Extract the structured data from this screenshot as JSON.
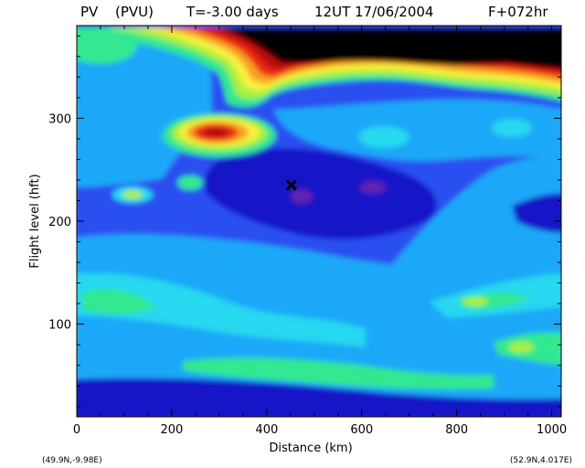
{
  "chart_data": {
    "type": "heatmap",
    "title_parts": [
      "PV",
      "(PVU)",
      "T=-3.00 days",
      "12UT 17/06/2004",
      "F+072hr"
    ],
    "xlabel": "Distance  (km)",
    "ylabel": "Flight level  (hft)",
    "xlim": [
      0,
      1020
    ],
    "ylim": [
      10,
      390
    ],
    "xticks": [
      0,
      200,
      400,
      600,
      800,
      1000
    ],
    "yticks": [
      100,
      200,
      300
    ],
    "start_label": "(49.9N,-9.98E)",
    "end_label": "(52.9N,4.017E)",
    "marker": {
      "x": 452,
      "y": 235,
      "symbol": "x"
    },
    "colors": {
      "deep_blue": "#1818c8",
      "blue": "#2a50f0",
      "light_blue": "#1ea8f8",
      "cyan": "#28d8f0",
      "green": "#30e890",
      "yellow_green": "#a8f040",
      "yellow": "#f8f040",
      "orange": "#f8a020",
      "red": "#e82818",
      "dark_red": "#b80808",
      "black": "#000000"
    }
  }
}
